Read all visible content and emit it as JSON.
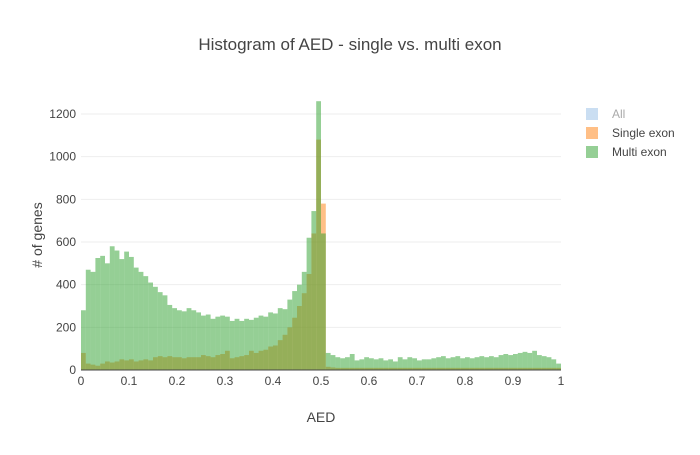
{
  "chart_data": {
    "type": "bar",
    "title": "Histogram of AED - single vs. multi exon",
    "xlabel": "AED",
    "ylabel": "# of genes",
    "xlim": [
      0,
      1
    ],
    "ylim": [
      0,
      1350
    ],
    "x_ticks": [
      "0",
      "0.1",
      "0.2",
      "0.3",
      "0.4",
      "0.5",
      "0.6",
      "0.7",
      "0.8",
      "0.9",
      "1"
    ],
    "y_ticks": [
      "0",
      "200",
      "400",
      "600",
      "800",
      "1000",
      "1200"
    ],
    "grid": true,
    "legend_position": "top-right",
    "bin_width": 0.01,
    "overlay": true,
    "series": [
      {
        "name": "All",
        "color": "#a6c8ea",
        "legend_text_color": "#aaaaaa",
        "visible": false,
        "values": []
      },
      {
        "name": "Single exon",
        "color": "#ff7f0e",
        "opacity": 0.5,
        "values": [
          80,
          30,
          25,
          20,
          30,
          40,
          35,
          40,
          50,
          45,
          50,
          40,
          45,
          50,
          45,
          60,
          65,
          60,
          65,
          60,
          60,
          55,
          60,
          60,
          60,
          70,
          65,
          60,
          70,
          75,
          90,
          55,
          60,
          65,
          70,
          90,
          80,
          90,
          95,
          110,
          115,
          140,
          165,
          200,
          245,
          300,
          360,
          450,
          640,
          1080,
          780,
          15,
          12,
          10,
          10,
          10,
          10,
          10,
          10,
          10,
          10,
          10,
          10,
          10,
          10,
          10,
          10,
          10,
          10,
          10,
          10,
          10,
          10,
          10,
          10,
          10,
          10,
          10,
          10,
          10,
          10,
          10,
          10,
          10,
          10,
          10,
          10,
          10,
          10,
          10,
          10,
          10,
          10,
          10,
          10,
          10,
          10,
          10,
          10,
          10
        ]
      },
      {
        "name": "Multi exon",
        "color": "#2ca02c",
        "opacity": 0.5,
        "values": [
          280,
          470,
          460,
          525,
          535,
          500,
          580,
          560,
          520,
          555,
          530,
          480,
          460,
          440,
          410,
          390,
          365,
          350,
          305,
          290,
          280,
          275,
          290,
          280,
          270,
          255,
          260,
          240,
          250,
          255,
          250,
          230,
          240,
          230,
          240,
          235,
          245,
          255,
          250,
          270,
          265,
          290,
          285,
          330,
          370,
          400,
          460,
          620,
          745,
          1260,
          640,
          80,
          70,
          60,
          55,
          60,
          75,
          45,
          50,
          60,
          55,
          50,
          55,
          45,
          50,
          40,
          60,
          50,
          60,
          55,
          45,
          50,
          50,
          55,
          60,
          65,
          55,
          60,
          65,
          55,
          60,
          55,
          60,
          65,
          60,
          65,
          60,
          70,
          75,
          70,
          75,
          80,
          85,
          80,
          90,
          70,
          65,
          60,
          50,
          30
        ]
      }
    ]
  }
}
